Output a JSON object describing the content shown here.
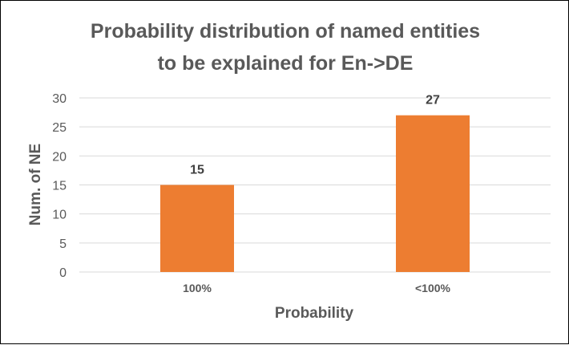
{
  "chart_data": {
    "type": "bar",
    "title_lines": [
      "Probability distribution of named entities",
      "to be explained for En->DE"
    ],
    "xlabel": "Probability",
    "ylabel": "Num. of NE",
    "categories": [
      "100%",
      "<100%"
    ],
    "values": [
      15,
      27
    ],
    "data_labels": [
      "15",
      "27"
    ],
    "ylim": [
      0,
      30
    ],
    "yticks": [
      0,
      5,
      10,
      15,
      20,
      25,
      30
    ],
    "grid": true,
    "legend": "none",
    "bar_color": "#ED7D31",
    "grid_color": "#D9D9D9"
  }
}
